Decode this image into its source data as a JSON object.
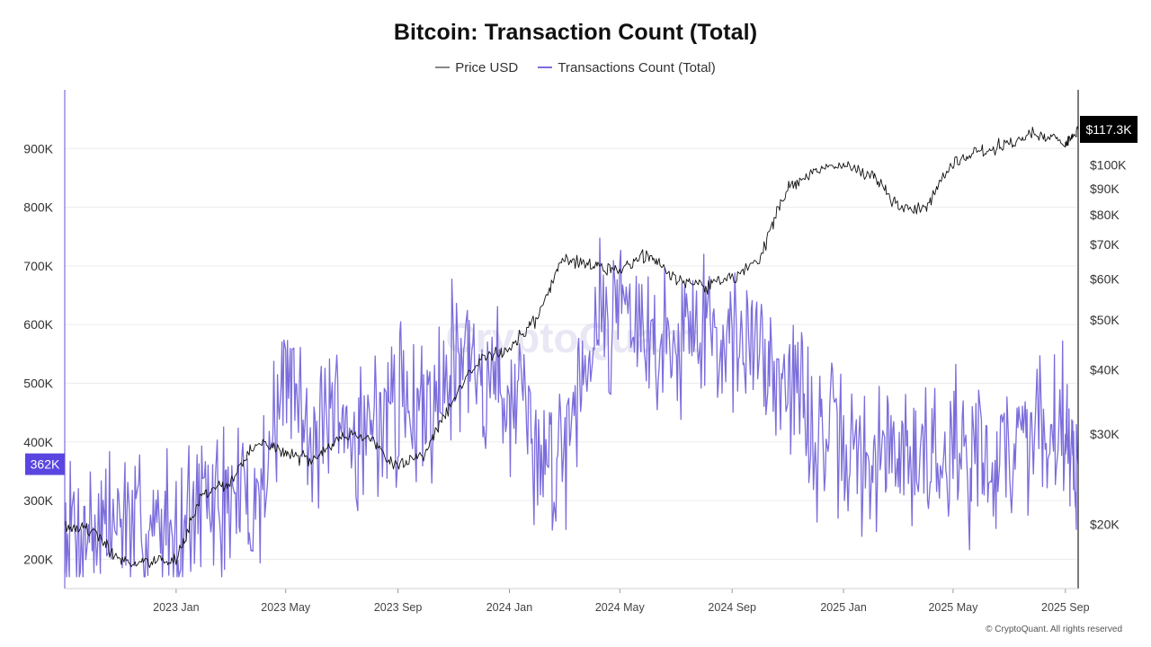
{
  "chart_data": {
    "type": "line",
    "title": "Bitcoin: Transaction Count (Total)",
    "legend_placement": "top-center",
    "grid": true,
    "series": [
      {
        "name": "Price USD",
        "color": "#000000",
        "axis": "right"
      },
      {
        "name": "Transactions Count (Total)",
        "color": "#7b6ddc",
        "axis": "left"
      }
    ],
    "left_axis": {
      "ticks": [
        "200K",
        "300K",
        "400K",
        "500K",
        "600K",
        "700K",
        "800K",
        "900K"
      ],
      "range": [
        150000,
        1000000
      ]
    },
    "right_axis": {
      "ticks": [
        "$20K",
        "$30K",
        "$40K",
        "$50K",
        "$60K",
        "$70K",
        "$80K",
        "$90K",
        "$100K"
      ],
      "scale": "log",
      "range": [
        15000,
        140000
      ]
    },
    "x_axis": {
      "ticks": [
        "2023 Jan",
        "2023 May",
        "2023 Sep",
        "2024 Jan",
        "2024 May",
        "2024 Sep",
        "2025 Jan",
        "2025 May",
        "2025 Sep"
      ],
      "range": [
        "2022-09-01",
        "2025-09-15"
      ]
    },
    "tx_points": [
      [
        "2022-09-01",
        260000
      ],
      [
        "2022-10-01",
        255000
      ],
      [
        "2022-11-01",
        265000
      ],
      [
        "2022-12-01",
        245000
      ],
      [
        "2023-01-01",
        262000
      ],
      [
        "2023-02-01",
        290000
      ],
      [
        "2023-03-01",
        300000
      ],
      [
        "2023-04-01",
        295000
      ],
      [
        "2023-05-01",
        520000
      ],
      [
        "2023-06-01",
        420000
      ],
      [
        "2023-07-01",
        400000
      ],
      [
        "2023-08-01",
        430000
      ],
      [
        "2023-09-01",
        470000
      ],
      [
        "2023-10-01",
        460000
      ],
      [
        "2023-11-01",
        560000
      ],
      [
        "2023-12-01",
        520000
      ],
      [
        "2024-01-01",
        480000
      ],
      [
        "2024-02-01",
        370000
      ],
      [
        "2024-03-01",
        400000
      ],
      [
        "2024-04-01",
        600000
      ],
      [
        "2024-05-01",
        650000
      ],
      [
        "2024-06-01",
        560000
      ],
      [
        "2024-07-01",
        580000
      ],
      [
        "2024-08-01",
        610000
      ],
      [
        "2024-09-01",
        570000
      ],
      [
        "2024-10-01",
        560000
      ],
      [
        "2024-11-01",
        520000
      ],
      [
        "2024-12-01",
        410000
      ],
      [
        "2025-01-01",
        380000
      ],
      [
        "2025-02-01",
        360000
      ],
      [
        "2025-03-01",
        390000
      ],
      [
        "2025-04-01",
        370000
      ],
      [
        "2025-05-01",
        400000
      ],
      [
        "2025-06-01",
        370000
      ],
      [
        "2025-07-01",
        380000
      ],
      [
        "2025-08-01",
        430000
      ],
      [
        "2025-09-01",
        440000
      ],
      [
        "2025-09-15",
        362000
      ]
    ],
    "price_points": [
      [
        "2022-09-01",
        20000
      ],
      [
        "2022-10-01",
        19500
      ],
      [
        "2022-11-01",
        17000
      ],
      [
        "2022-12-01",
        16800
      ],
      [
        "2023-01-01",
        17000
      ],
      [
        "2023-02-01",
        23000
      ],
      [
        "2023-03-01",
        24000
      ],
      [
        "2023-04-01",
        29000
      ],
      [
        "2023-05-01",
        27500
      ],
      [
        "2023-06-01",
        26500
      ],
      [
        "2023-07-01",
        30000
      ],
      [
        "2023-08-01",
        29500
      ],
      [
        "2023-09-01",
        26000
      ],
      [
        "2023-10-01",
        27500
      ],
      [
        "2023-11-01",
        35000
      ],
      [
        "2023-12-01",
        42000
      ],
      [
        "2024-01-01",
        44000
      ],
      [
        "2024-02-01",
        50000
      ],
      [
        "2024-03-01",
        66000
      ],
      [
        "2024-04-01",
        64000
      ],
      [
        "2024-05-01",
        62000
      ],
      [
        "2024-06-01",
        67000
      ],
      [
        "2024-07-01",
        60000
      ],
      [
        "2024-08-01",
        58000
      ],
      [
        "2024-09-01",
        60000
      ],
      [
        "2024-10-01",
        65000
      ],
      [
        "2024-11-01",
        90000
      ],
      [
        "2024-12-01",
        97000
      ],
      [
        "2025-01-01",
        101000
      ],
      [
        "2025-02-01",
        96000
      ],
      [
        "2025-03-01",
        83000
      ],
      [
        "2025-04-01",
        82000
      ],
      [
        "2025-05-01",
        100000
      ],
      [
        "2025-06-01",
        106000
      ],
      [
        "2025-07-01",
        110000
      ],
      [
        "2025-08-01",
        116000
      ],
      [
        "2025-09-01",
        110000
      ],
      [
        "2025-09-15",
        117300
      ]
    ],
    "current_tx_label": "362K",
    "current_price_label": "$117.3K"
  },
  "legend": {
    "price_label": "Price USD",
    "tx_label": "Transactions Count (Total)"
  },
  "watermark": "CryptoQuant",
  "copyright": "© CryptoQuant. All rights reserved"
}
